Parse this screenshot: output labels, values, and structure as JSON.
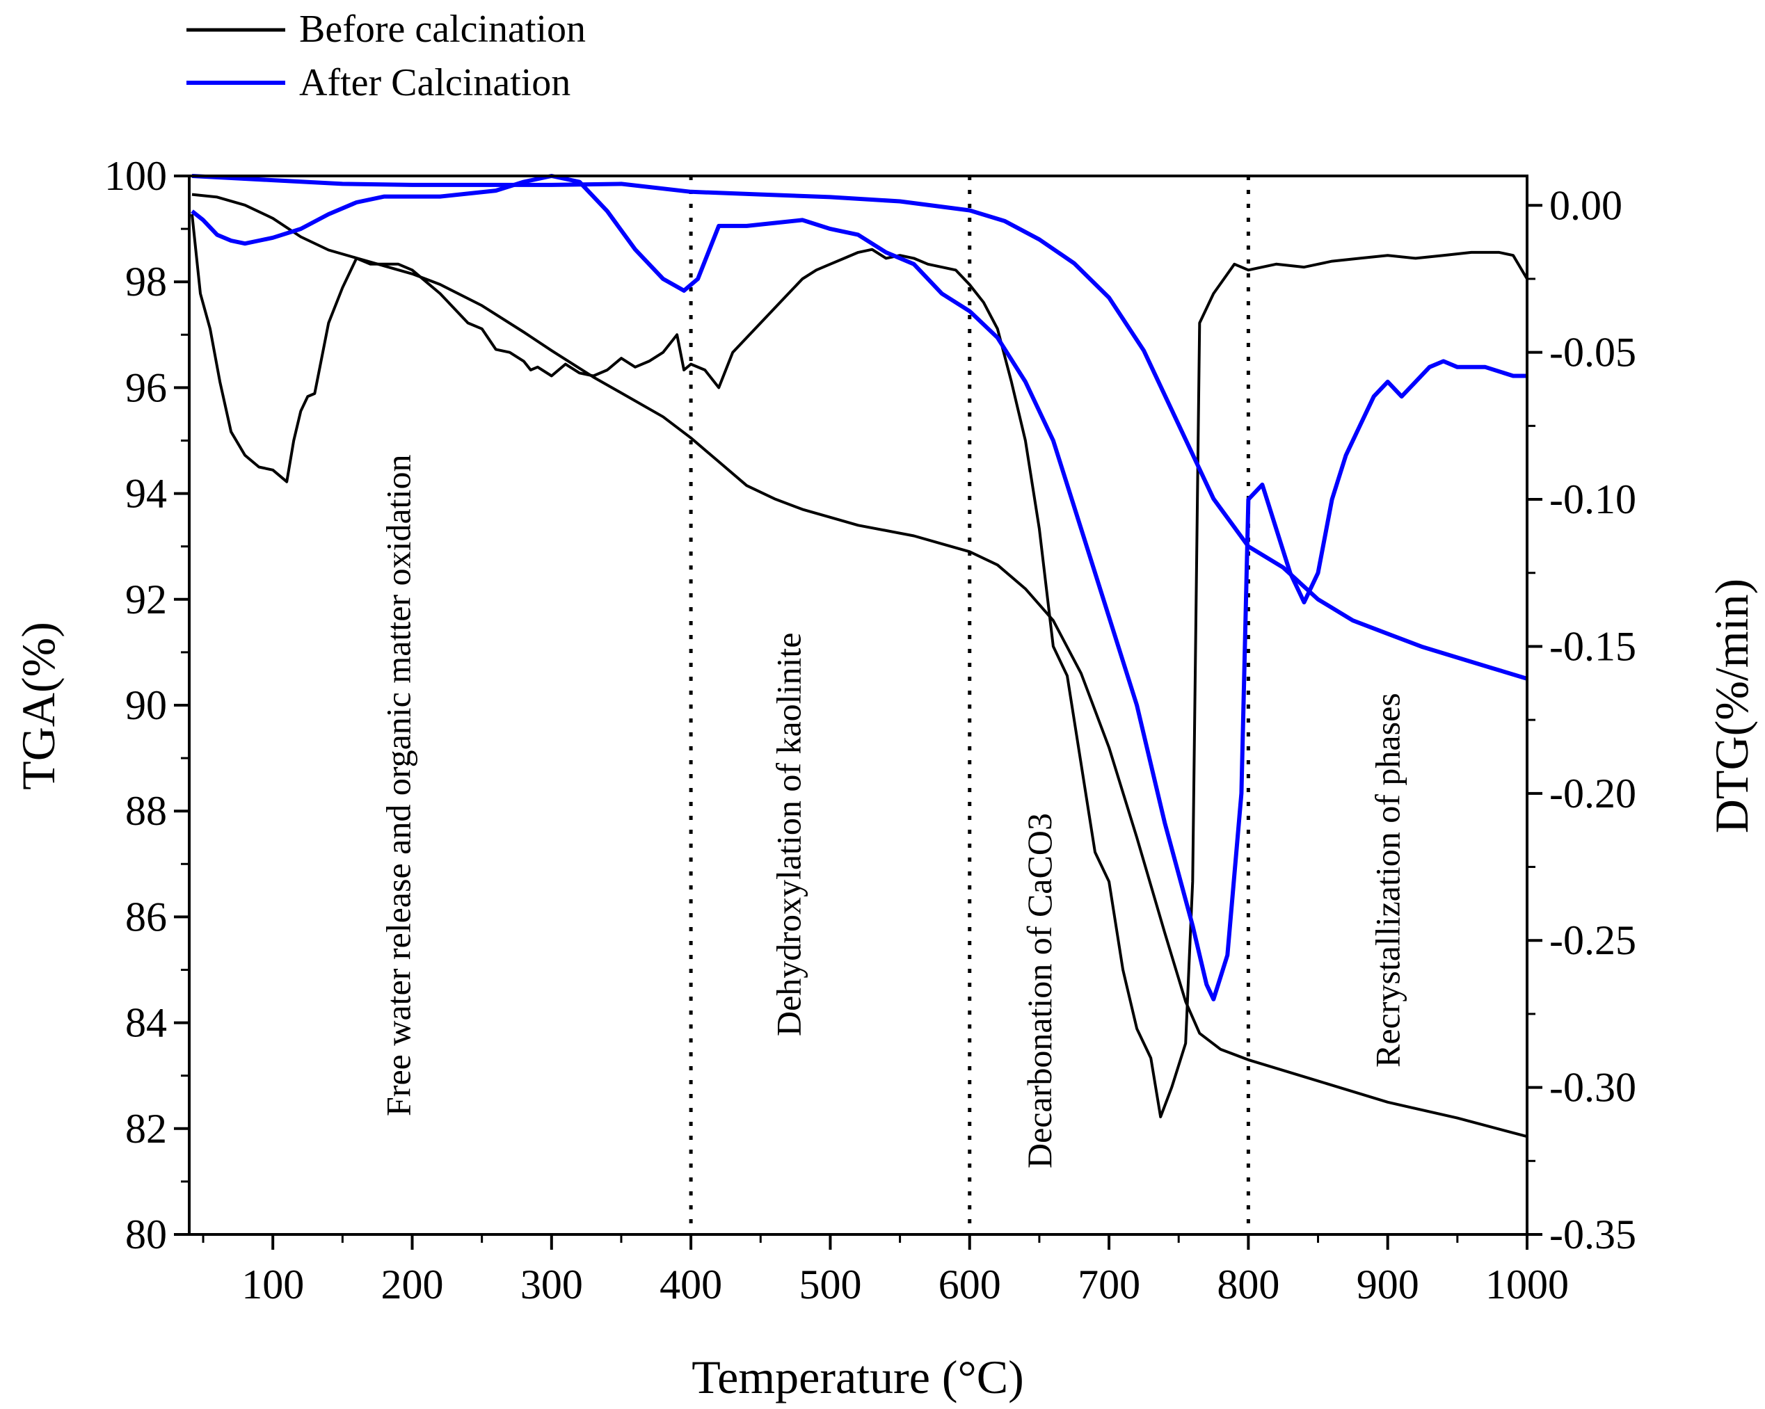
{
  "chart_data": {
    "type": "line",
    "xlabel": "Temperature (°C)",
    "ylabel_left": "TGA(%)",
    "ylabel_right": "DTG(%/min)",
    "xlim": [
      40,
      1000
    ],
    "ylim_left": [
      80,
      100
    ],
    "ylim_right": [
      -0.35,
      0.01
    ],
    "x_ticks": [
      100,
      200,
      300,
      400,
      500,
      600,
      700,
      800,
      900,
      1000
    ],
    "y_left_ticks": [
      80,
      82,
      84,
      86,
      88,
      90,
      92,
      94,
      96,
      98,
      100
    ],
    "y_right_ticks": [
      0.0,
      -0.05,
      -0.1,
      -0.15,
      -0.2,
      -0.25,
      -0.3,
      -0.35
    ],
    "y_right_tick_labels": [
      "0.00",
      "-0.05",
      "-0.10",
      "-0.15",
      "-0.20",
      "-0.25",
      "-0.30",
      "-0.35"
    ],
    "legend": [
      {
        "name": "Before calcination",
        "color": "#000000"
      },
      {
        "name": "After Calcination",
        "color": "#0000ff"
      }
    ],
    "region_dividers_x": [
      400,
      600,
      800
    ],
    "annotations": [
      {
        "text": "Free water release and organic matter oxidation",
        "x": 190
      },
      {
        "text": "Dehydroxylation of kaolinite",
        "x": 470
      },
      {
        "text": "Decarbonation of CaCO3",
        "x": 650
      },
      {
        "text": "Recrystallization of phases",
        "x": 900
      }
    ],
    "series": [
      {
        "name": "Before calcination",
        "kind": "TGA",
        "axis": "left",
        "color": "#000000",
        "x": [
          42,
          60,
          80,
          100,
          120,
          140,
          160,
          180,
          200,
          220,
          250,
          280,
          300,
          330,
          350,
          380,
          400,
          420,
          440,
          460,
          480,
          500,
          520,
          540,
          560,
          580,
          600,
          620,
          640,
          660,
          680,
          700,
          720,
          740,
          755,
          765,
          780,
          800,
          850,
          900,
          950,
          1000
        ],
        "y": [
          99.65,
          99.6,
          99.45,
          99.2,
          98.85,
          98.6,
          98.45,
          98.3,
          98.15,
          97.95,
          97.55,
          97.05,
          96.7,
          96.2,
          95.9,
          95.45,
          95.05,
          94.6,
          94.15,
          93.9,
          93.7,
          93.55,
          93.4,
          93.3,
          93.2,
          93.05,
          92.9,
          92.65,
          92.2,
          91.6,
          90.6,
          89.2,
          87.5,
          85.7,
          84.4,
          83.8,
          83.5,
          83.3,
          82.9,
          82.5,
          82.2,
          81.85
        ]
      },
      {
        "name": "Before calcination",
        "kind": "DTG",
        "axis": "right",
        "color": "#000000",
        "x": [
          42,
          48,
          55,
          62,
          70,
          80,
          90,
          100,
          110,
          115,
          120,
          125,
          130,
          140,
          150,
          160,
          170,
          180,
          190,
          200,
          210,
          220,
          230,
          240,
          250,
          260,
          270,
          280,
          285,
          290,
          300,
          310,
          320,
          330,
          340,
          350,
          360,
          370,
          380,
          390,
          395,
          400,
          410,
          420,
          430,
          440,
          450,
          460,
          470,
          480,
          490,
          500,
          510,
          520,
          530,
          540,
          550,
          560,
          570,
          580,
          590,
          600,
          610,
          620,
          630,
          640,
          650,
          660,
          670,
          680,
          690,
          700,
          710,
          720,
          730,
          737,
          745,
          755,
          760,
          765,
          775,
          790,
          800,
          820,
          840,
          860,
          880,
          900,
          920,
          940,
          960,
          980,
          990,
          1000
        ],
        "y": [
          -0.003,
          -0.03,
          -0.042,
          -0.06,
          -0.077,
          -0.085,
          -0.089,
          -0.09,
          -0.094,
          -0.08,
          -0.07,
          -0.065,
          -0.064,
          -0.04,
          -0.028,
          -0.018,
          -0.02,
          -0.02,
          -0.02,
          -0.022,
          -0.026,
          -0.03,
          -0.035,
          -0.04,
          -0.042,
          -0.049,
          -0.05,
          -0.053,
          -0.056,
          -0.055,
          -0.058,
          -0.054,
          -0.057,
          -0.058,
          -0.056,
          -0.052,
          -0.055,
          -0.053,
          -0.05,
          -0.044,
          -0.056,
          -0.054,
          -0.056,
          -0.062,
          -0.05,
          -0.045,
          -0.04,
          -0.035,
          -0.03,
          -0.025,
          -0.022,
          -0.02,
          -0.018,
          -0.016,
          -0.015,
          -0.018,
          -0.017,
          -0.018,
          -0.02,
          -0.021,
          -0.022,
          -0.027,
          -0.033,
          -0.042,
          -0.06,
          -0.08,
          -0.11,
          -0.15,
          -0.16,
          -0.19,
          -0.22,
          -0.23,
          -0.26,
          -0.28,
          -0.29,
          -0.31,
          -0.3,
          -0.285,
          -0.23,
          -0.04,
          -0.03,
          -0.02,
          -0.022,
          -0.02,
          -0.021,
          -0.019,
          -0.018,
          -0.017,
          -0.018,
          -0.017,
          -0.016,
          -0.016,
          -0.017,
          -0.025
        ]
      },
      {
        "name": "After Calcination",
        "kind": "TGA",
        "axis": "left",
        "color": "#0000ff",
        "x": [
          42,
          100,
          150,
          200,
          250,
          300,
          350,
          400,
          450,
          500,
          550,
          600,
          625,
          650,
          675,
          700,
          725,
          750,
          775,
          800,
          825,
          850,
          875,
          900,
          925,
          950,
          975,
          1000
        ],
        "y": [
          100.0,
          99.92,
          99.85,
          99.83,
          99.83,
          99.83,
          99.85,
          99.7,
          99.65,
          99.6,
          99.52,
          99.35,
          99.15,
          98.8,
          98.35,
          97.7,
          96.7,
          95.3,
          93.9,
          93.0,
          92.6,
          92.0,
          91.6,
          91.35,
          91.1,
          90.9,
          90.7,
          90.5
        ]
      },
      {
        "name": "After Calcination",
        "kind": "DTG",
        "axis": "right",
        "color": "#0000ff",
        "x": [
          42,
          50,
          60,
          70,
          80,
          90,
          100,
          120,
          140,
          160,
          180,
          200,
          220,
          240,
          260,
          280,
          300,
          320,
          340,
          360,
          380,
          395,
          405,
          420,
          440,
          460,
          480,
          500,
          520,
          540,
          560,
          580,
          600,
          620,
          640,
          660,
          680,
          700,
          720,
          740,
          760,
          770,
          775,
          785,
          795,
          800,
          810,
          820,
          830,
          840,
          850,
          860,
          870,
          880,
          890,
          900,
          910,
          920,
          930,
          940,
          950,
          970,
          990,
          1000
        ],
        "y": [
          -0.002,
          -0.005,
          -0.01,
          -0.012,
          -0.013,
          -0.012,
          -0.011,
          -0.008,
          -0.003,
          0.001,
          0.003,
          0.003,
          0.003,
          0.004,
          0.005,
          0.008,
          0.01,
          0.008,
          -0.002,
          -0.015,
          -0.025,
          -0.029,
          -0.025,
          -0.007,
          -0.007,
          -0.006,
          -0.005,
          -0.008,
          -0.01,
          -0.016,
          -0.02,
          -0.03,
          -0.036,
          -0.045,
          -0.06,
          -0.08,
          -0.11,
          -0.14,
          -0.17,
          -0.21,
          -0.245,
          -0.265,
          -0.27,
          -0.255,
          -0.2,
          -0.1,
          -0.095,
          -0.11,
          -0.125,
          -0.135,
          -0.125,
          -0.1,
          -0.085,
          -0.075,
          -0.065,
          -0.06,
          -0.065,
          -0.06,
          -0.055,
          -0.053,
          -0.055,
          -0.055,
          -0.058,
          -0.058
        ]
      }
    ]
  }
}
